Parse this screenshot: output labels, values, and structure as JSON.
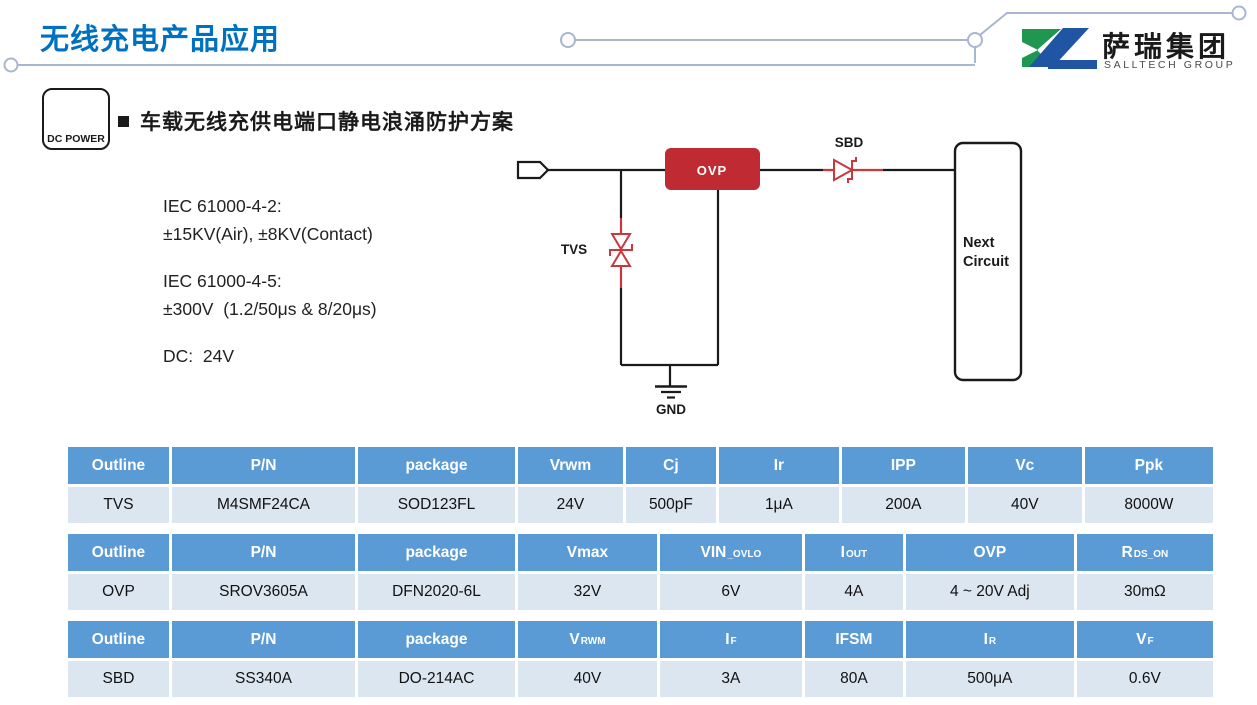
{
  "page": {
    "title": "无线充电产品应用"
  },
  "logo": {
    "cn": "萨瑞集团",
    "en": "SALLTECH GROUP"
  },
  "dc_power": {
    "label": "DC POWER"
  },
  "section": {
    "heading": "车载无线充供电端口静电浪涌防护方案"
  },
  "specs": {
    "lines": [
      "IEC 61000-4-2:",
      "±15KV(Air), ±8KV(Contact)",
      "IEC 61000-4-5:",
      "±300V  (1.2/50μs & 8/20μs)",
      "DC:  24V"
    ]
  },
  "circuit": {
    "ovp": "OVP",
    "tvs": "TVS",
    "sbd": "SBD",
    "gnd": "GND",
    "next_line1": "Next",
    "next_line2": "Circuit"
  },
  "tables": [
    {
      "headers": [
        "Outline",
        "P/N",
        "package",
        "Vrwm",
        "Cj",
        "Ir",
        "IPP",
        "Vc",
        "Ppk"
      ],
      "widths": [
        9.08,
        16.25,
        13.97,
        9.43,
        8.12,
        10.74,
        11.0,
        10.22,
        11.19
      ],
      "row": [
        "TVS",
        "M4SMF24CA",
        "SOD123FL",
        "24V",
        "500pF",
        "1μA",
        "200A",
        "40V",
        "8000W"
      ]
    },
    {
      "headers": [
        "Outline",
        "P/N",
        "package",
        "Vmax",
        "VIN|_OVLO",
        "I|OUT",
        "OVP",
        "R|DS_ON"
      ],
      "widths": [
        9.08,
        16.25,
        13.97,
        12.4,
        12.66,
        8.82,
        14.93,
        11.89
      ],
      "row": [
        "OVP",
        "SROV3605A",
        "DFN2020-6L",
        "32V",
        "6V",
        "4A",
        "4 ~ 20V Adj",
        "30mΩ"
      ]
    },
    {
      "headers": [
        "Outline",
        "P/N",
        "package",
        "V|RWM",
        "I|F",
        "IFSM",
        "I|R",
        "V|F"
      ],
      "widths": [
        9.08,
        16.25,
        13.97,
        12.4,
        12.66,
        8.82,
        14.93,
        11.89
      ],
      "row": [
        "SBD",
        "SS340A",
        "DO-214AC",
        "40V",
        "3A",
        "80A",
        "500μA",
        "0.6V"
      ]
    }
  ],
  "colors": {
    "title_blue": "#0070C0",
    "table_header_blue": "#5B9BD5",
    "table_row_bg": "#DCE6F1",
    "accent_red": "#C02A33",
    "decor_line": "#A9B6D2",
    "logo_green": "#1F9751",
    "logo_blue": "#2055A4"
  }
}
